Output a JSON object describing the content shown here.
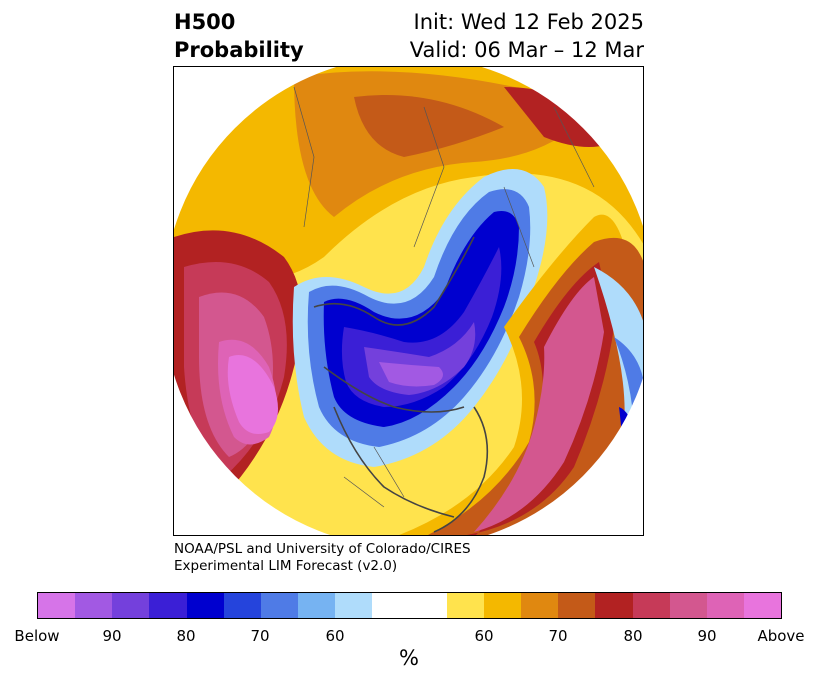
{
  "title": {
    "line1": "H500",
    "line2": "Probability",
    "init": "Init: Wed 12 Feb 2025",
    "valid": "Valid: 06 Mar – 12 Mar"
  },
  "credit": {
    "line1": "NOAA/PSL and University of Colorado/CIRES",
    "line2": "Experimental LIM Forecast (v2.0)"
  },
  "colorbar": {
    "colors": [
      "#d674e8",
      "#a259e3",
      "#7440dc",
      "#3b1fd6",
      "#0000cf",
      "#2544dc",
      "#4f7be6",
      "#76b3f2",
      "#afdcfb",
      "#ffffff",
      "#ffffff",
      "#ffe34d",
      "#f4b800",
      "#e08810",
      "#c45a18",
      "#b22222",
      "#c63a58",
      "#d3578f",
      "#de63b6",
      "#e874dd"
    ],
    "tick_labels": [
      "Below",
      "90",
      "80",
      "70",
      "60",
      "60",
      "70",
      "80",
      "90",
      "Above"
    ],
    "unit": "%"
  },
  "map": {
    "projection": "north-polar-stereographic",
    "field": "500 hPa height probability",
    "features": [
      {
        "name": "below-center-arctic-canada",
        "category": "Below 90"
      },
      {
        "name": "above-center-north-pacific",
        "category": "Above 90"
      },
      {
        "name": "above-band-north-atlantic",
        "category": "Above 80"
      },
      {
        "name": "above-band-eurasia",
        "category": "Above 70"
      }
    ]
  }
}
